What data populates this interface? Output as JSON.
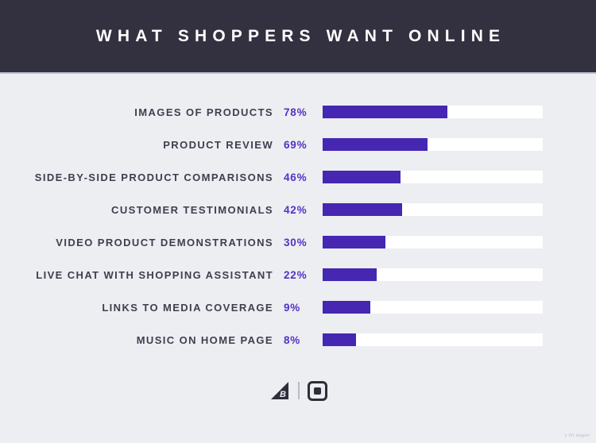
{
  "header": {
    "title": "WHAT SHOPPERS WANT ONLINE"
  },
  "chart_data": {
    "type": "bar",
    "orientation": "horizontal",
    "title": "WHAT SHOPPERS WANT ONLINE",
    "xlabel": "",
    "ylabel": "",
    "xlim": [
      0,
      100
    ],
    "grid": false,
    "legend": false,
    "categories": [
      "IMAGES OF PRODUCTS",
      "PRODUCT REVIEW",
      "SIDE-BY-SIDE PRODUCT COMPARISONS",
      "CUSTOMER TESTIMONIALS",
      "VIDEO PRODUCT DEMONSTRATIONS",
      "LIVE CHAT WITH SHOPPING ASSISTANT",
      "LINKS TO MEDIA COVERAGE",
      "MUSIC ON HOME PAGE"
    ],
    "values": [
      78,
      69,
      46,
      42,
      30,
      22,
      9,
      8
    ],
    "value_labels": [
      "78%",
      "69%",
      "46%",
      "42%",
      "30%",
      "22%",
      "9%",
      "8%"
    ],
    "bar_track_fractions_pct": [
      56.5,
      47.5,
      35.5,
      36.0,
      28.5,
      24.5,
      21.5,
      15.0
    ],
    "bar_color": "#4527b2",
    "track_color": "#ffffff",
    "value_label_color": "#5430c8",
    "category_label_color": "#403e50"
  },
  "footer": {
    "brand_letter": "B",
    "icons": [
      "bigcommerce-sail-icon",
      "square-logo-icon"
    ]
  },
  "watermark": "c ilfr wagen",
  "colors": {
    "background": "#eceef1",
    "header_bg": "#33313f",
    "header_text": "#ffffff",
    "bar_purple": "#4527b2",
    "icon_dark": "#2e2d3a"
  }
}
